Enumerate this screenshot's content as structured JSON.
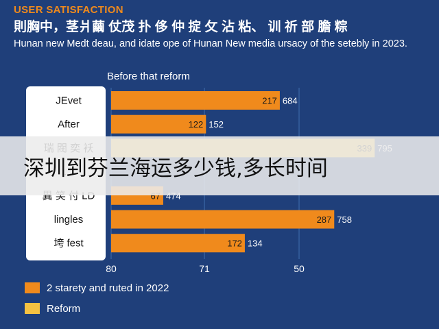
{
  "header": {
    "kicker": "USER SATISFACTION",
    "title": "則胸中，茎爿繭 仗茂 扑 侈 仲 掟 攵 沾 粘、 训 祈 部 膽 粽",
    "subtitle": "Hunan new Medt deau, and idate ope of Hunan New media ursacy of the setebly in 2023."
  },
  "overlay": {
    "text": "深圳到芬兰海运多少钱,多长时间"
  },
  "colors": {
    "background": "#1f3f7a",
    "panel": "#ffffff",
    "bar_primary": "#f08a1c",
    "bar_secondary": "#f5c242",
    "grid": "#3f6fb0"
  },
  "chart_data": {
    "type": "bar",
    "orientation": "horizontal",
    "subtitle": "Before that reform",
    "categories": [
      "JEvet",
      "After",
      "瑞 閥 奕 袄",
      "…",
      "異 笑 付 LD",
      "lingles",
      "垮 fest"
    ],
    "values": [
      217,
      122,
      339,
      null,
      67,
      287,
      172
    ],
    "value_labels": [
      "217",
      "122",
      "339",
      "",
      "67",
      "287",
      "172"
    ],
    "secondary_labels": [
      "684",
      "152",
      "795",
      "",
      "474",
      "758",
      "134"
    ],
    "bar_colors": [
      "primary",
      "primary",
      "secondary",
      "primary",
      "primary",
      "primary",
      "primary"
    ],
    "xlim": [
      0,
      240
    ],
    "x_tick_labels": [
      "80",
      "71",
      "50"
    ],
    "grid": true,
    "legend_position": "bottom-left",
    "legend": [
      {
        "label": "2 starety and ruted in 2022",
        "color": "#f08a1c"
      },
      {
        "label": "Reform",
        "color": "#f5c242"
      }
    ]
  }
}
